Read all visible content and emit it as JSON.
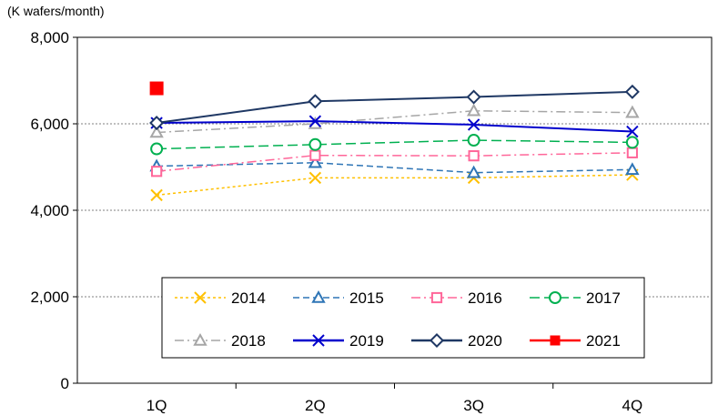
{
  "chart_data": {
    "type": "line",
    "title": "",
    "unit_label": "(K wafers/month)",
    "categories": [
      "1Q",
      "2Q",
      "3Q",
      "4Q"
    ],
    "ylim": [
      0,
      8000
    ],
    "yticks": [
      0,
      2000,
      4000,
      6000,
      8000
    ],
    "ytick_labels": [
      "0",
      "2,000",
      "4,000",
      "6,000",
      "8,000"
    ],
    "grid": "horizontal dotted",
    "legend_position": "bottom-center",
    "series": [
      {
        "name": "2014",
        "values": [
          4350,
          4750,
          4750,
          4820
        ],
        "color": "#FFC000",
        "dash": "dotted",
        "marker": "x"
      },
      {
        "name": "2015",
        "values": [
          5020,
          5100,
          4870,
          4940
        ],
        "color": "#2E75B6",
        "dash": "dashed",
        "marker": "triangle"
      },
      {
        "name": "2016",
        "values": [
          4900,
          5270,
          5260,
          5330
        ],
        "color": "#FF6699",
        "dash": "dashdot",
        "marker": "square-open"
      },
      {
        "name": "2017",
        "values": [
          5420,
          5520,
          5620,
          5570
        ],
        "color": "#00B050",
        "dash": "longdash",
        "marker": "circle"
      },
      {
        "name": "2018",
        "values": [
          5800,
          6000,
          6300,
          6260
        ],
        "color": "#A6A6A6",
        "dash": "dashdot",
        "marker": "triangle"
      },
      {
        "name": "2019",
        "values": [
          6020,
          6060,
          5980,
          5820
        ],
        "color": "#0000CC",
        "dash": "solid",
        "marker": "x"
      },
      {
        "name": "2020",
        "values": [
          6020,
          6520,
          6620,
          6740
        ],
        "color": "#1F3864",
        "dash": "solid",
        "marker": "diamond"
      },
      {
        "name": "2021",
        "values": [
          6820,
          null,
          null,
          null
        ],
        "color": "#FF0000",
        "dash": "solid",
        "marker": "square-filled"
      }
    ]
  }
}
